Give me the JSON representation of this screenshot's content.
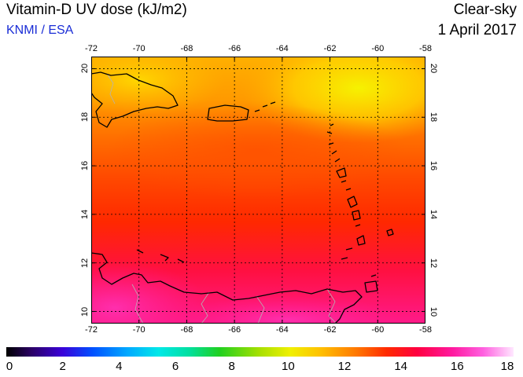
{
  "header": {
    "title": "Vitamin-D UV dose (kJ/m2)",
    "credit": "KNMI / ESA",
    "condition": "Clear-sky",
    "date": "1 April 2017"
  },
  "map": {
    "lon_ticks": [
      "-72",
      "-70",
      "-68",
      "-66",
      "-64",
      "-62",
      "-60",
      "-58"
    ],
    "lat_ticks": [
      "20",
      "18",
      "16",
      "14",
      "12",
      "10"
    ],
    "lon_range": [
      -72,
      -58
    ],
    "lat_range": [
      9.5,
      20.5
    ],
    "grid": true,
    "colors": {
      "coast": "#000000",
      "border": "#b4b4b4",
      "grid": "#000000"
    }
  },
  "colorbar": {
    "labels": [
      "0",
      "2",
      "4",
      "6",
      "8",
      "10",
      "12",
      "14",
      "16",
      "18"
    ],
    "range": [
      0,
      18
    ]
  }
}
